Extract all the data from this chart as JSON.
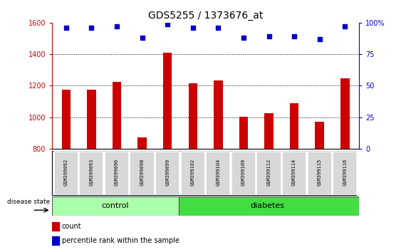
{
  "title": "GDS5255 / 1373676_at",
  "samples": [
    "GSM399092",
    "GSM399093",
    "GSM399096",
    "GSM399098",
    "GSM399099",
    "GSM399102",
    "GSM399104",
    "GSM399109",
    "GSM399112",
    "GSM399114",
    "GSM399115",
    "GSM399116"
  ],
  "counts": [
    1175,
    1175,
    1225,
    870,
    1410,
    1215,
    1235,
    1005,
    1025,
    1090,
    970,
    1245
  ],
  "percentiles": [
    96,
    96,
    97,
    88,
    99,
    96,
    96,
    88,
    89,
    89,
    87,
    97
  ],
  "ylim": [
    800,
    1600
  ],
  "y2lim": [
    0,
    100
  ],
  "yticks": [
    800,
    1000,
    1200,
    1400,
    1600
  ],
  "y2ticks": [
    0,
    25,
    50,
    75,
    100
  ],
  "bar_color": "#cc0000",
  "dot_color": "#0000cc",
  "control_color": "#aaffaa",
  "diabetes_color": "#44dd44",
  "control_samples": 5,
  "diabetes_samples": 7,
  "control_label": "control",
  "diabetes_label": "diabetes",
  "disease_state_label": "disease state",
  "legend_count": "count",
  "legend_percentile": "percentile rank within the sample",
  "plot_bg": "#ffffff",
  "title_fontsize": 10,
  "tick_fontsize": 7,
  "sample_fontsize": 5,
  "label_fontsize": 8
}
